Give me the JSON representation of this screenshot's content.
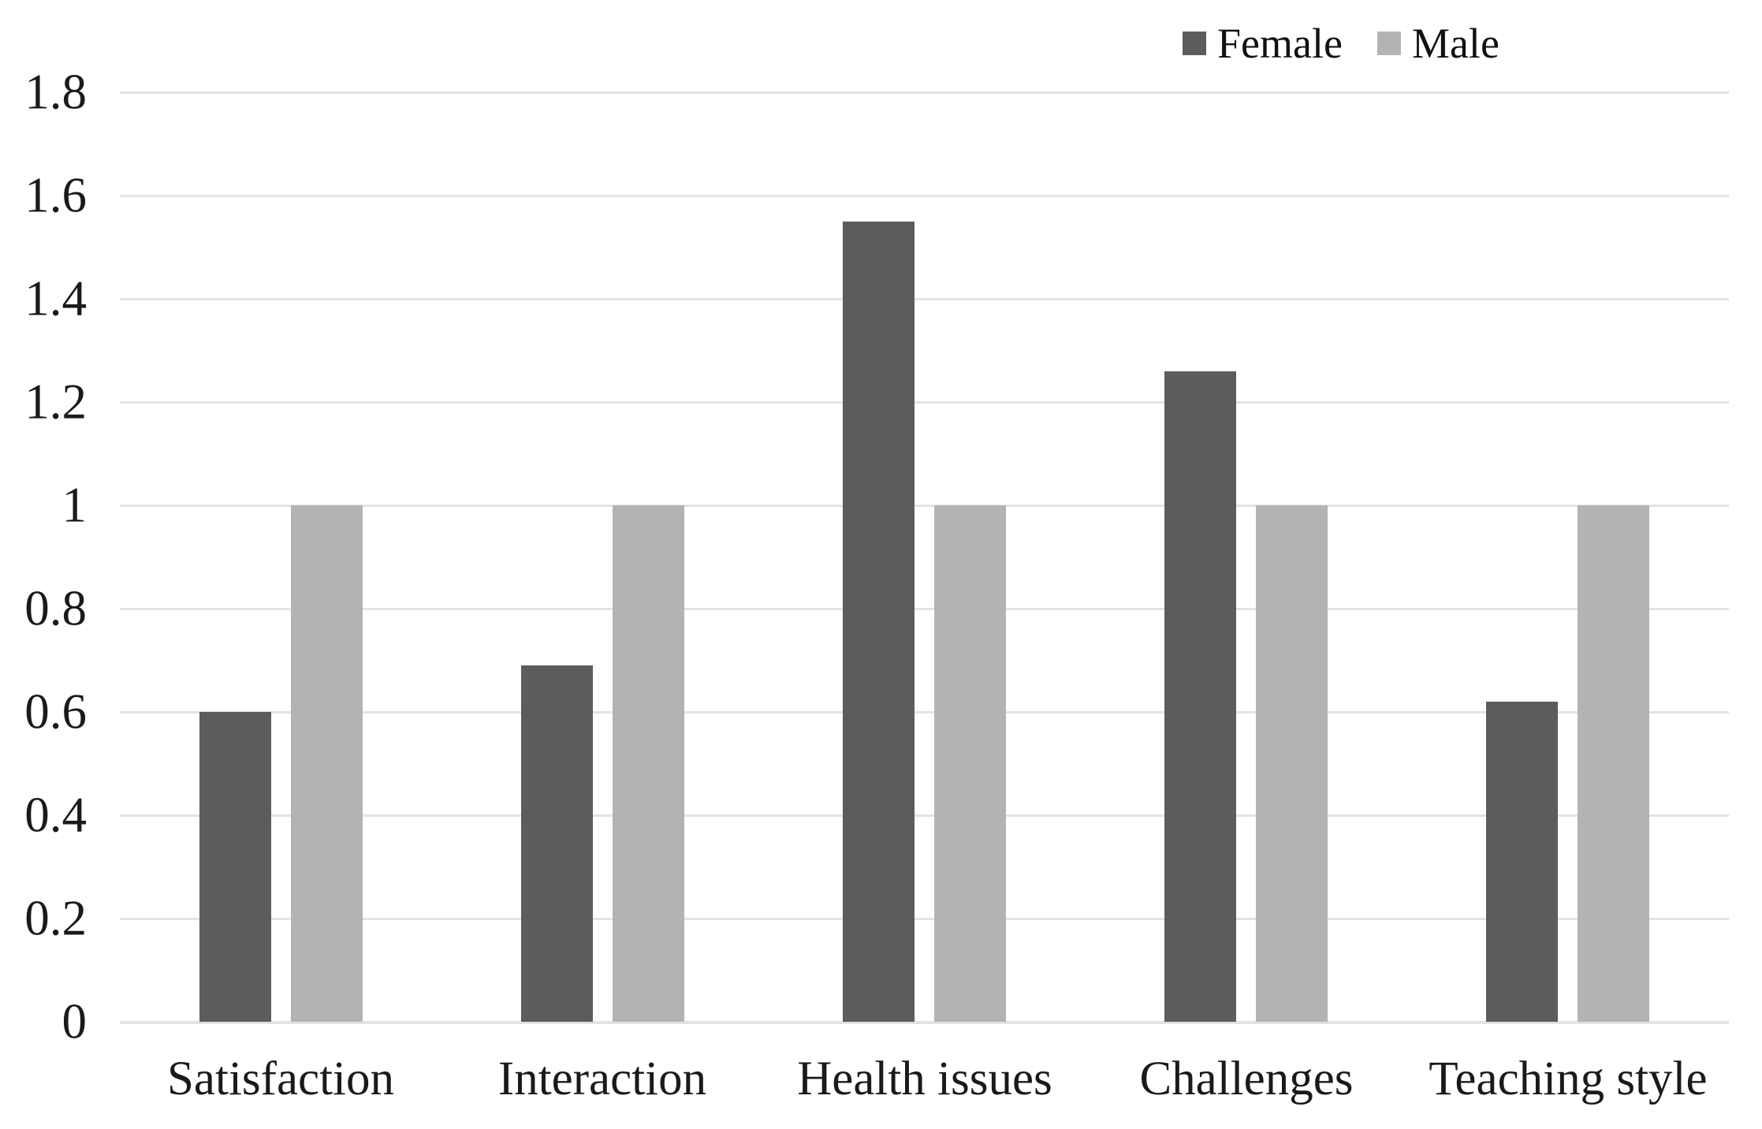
{
  "chart_data": {
    "type": "bar",
    "title": "",
    "xlabel": "",
    "ylabel": "",
    "categories": [
      "Satisfaction",
      "Interaction",
      "Health issues",
      "Challenges",
      "Teaching style"
    ],
    "series": [
      {
        "name": "Female",
        "color": "#5c5c5c",
        "values": [
          0.6,
          0.69,
          1.55,
          1.26,
          0.62
        ]
      },
      {
        "name": "Male",
        "color": "#b3b3b3",
        "values": [
          1.0,
          1.0,
          1.0,
          1.0,
          1.0
        ]
      }
    ],
    "ylim": [
      0,
      1.8
    ],
    "y_ticks": [
      {
        "value": 1.8,
        "label": "1.8"
      },
      {
        "value": 1.6,
        "label": "1.6"
      },
      {
        "value": 1.4,
        "label": "1.4"
      },
      {
        "value": 1.2,
        "label": "1.2"
      },
      {
        "value": 1.0,
        "label": "1"
      },
      {
        "value": 0.8,
        "label": "0.8"
      },
      {
        "value": 0.6,
        "label": "0.6"
      },
      {
        "value": 0.4,
        "label": "0.4"
      },
      {
        "value": 0.2,
        "label": "0.2"
      },
      {
        "value": 0.0,
        "label": "0"
      }
    ],
    "grid": true,
    "legend_position": "top-right",
    "colors": {
      "background": "#ffffff",
      "gridline": "#e3e3e3",
      "text": "#1a1a1a"
    }
  }
}
